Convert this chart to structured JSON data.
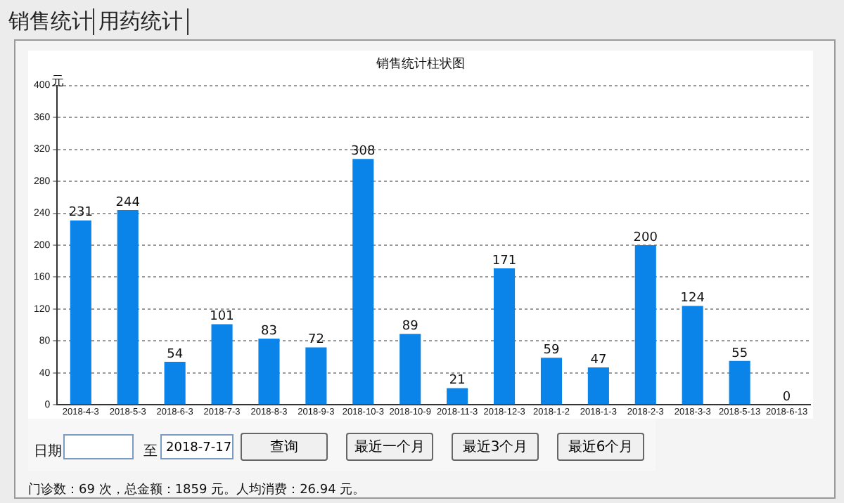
{
  "chart_data": {
    "type": "bar",
    "title": "销售统计柱状图",
    "ylabel": "元",
    "categories": [
      "2018-4-3",
      "2018-5-3",
      "2018-6-3",
      "2018-7-3",
      "2018-8-3",
      "2018-9-3",
      "2018-10-3",
      "2018-10-9",
      "2018-11-3",
      "2018-12-3",
      "2018-1-2",
      "2018-1-3",
      "2018-2-3",
      "2018-3-3",
      "2018-5-13",
      "2018-6-13"
    ],
    "values": [
      231,
      244,
      54,
      101,
      83,
      72,
      308,
      89,
      21,
      171,
      59,
      47,
      200,
      124,
      55,
      0
    ],
    "color": "#0a84e8",
    "ylim": [
      0,
      400
    ],
    "yticks": [
      0,
      40,
      80,
      120,
      160,
      200,
      240,
      280,
      320,
      360,
      400
    ],
    "grid": "y",
    "data_labels": true,
    "annotations": [
      "销售统计",
      "用药统计",
      "日期",
      "至",
      "2018-7-17",
      "查询",
      "最近一个月",
      "最近3个月",
      "最近6个月",
      "门诊数：69 次，总金额：1859 元。人均消费：26.94 元。"
    ]
  }
}
